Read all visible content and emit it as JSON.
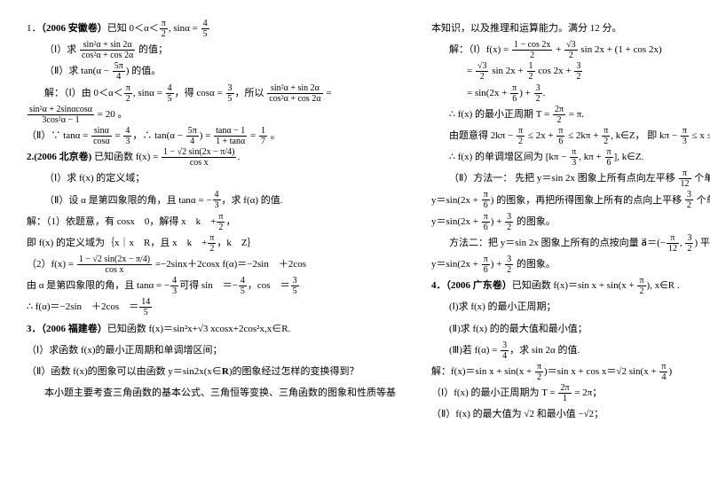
{
  "left": {
    "p1": {
      "title_prefix": "1．",
      "title_bold": "（2006 安徽卷）",
      "title_rest": "已知 0＜α＜",
      "frac1_num": "π",
      "frac1_den": "2",
      "rest2": ", sinα = ",
      "frac2_num": "4",
      "frac2_den": "5",
      "q1_a": "（Ⅰ）求 ",
      "q1_frac_num": "sin²α + sin 2α",
      "q1_frac_den": "cos²α + cos 2α",
      "q1_b": " 的值；",
      "q2_a": "（Ⅱ）求 tan(α − ",
      "q2_frac_num": "5π",
      "q2_frac_den": "4",
      "q2_b": ") 的值。",
      "sol_a": "解：（Ⅰ）由 0＜α＜",
      "sol_frac1_num": "π",
      "sol_frac1_den": "2",
      "sol_b": ", sinα = ",
      "sol_frac2_num": "4",
      "sol_frac2_den": "5",
      "sol_c": "，得 cosα = ",
      "sol_frac3_num": "3",
      "sol_frac3_den": "5",
      "sol_d": "，所以 ",
      "sol_frac4_num": "sin²α + sin 2α",
      "sol_frac4_den": "cos²α + cos 2α",
      "sol_e": " =",
      "sol2_frac_num": "sin²α + 2sinαcosα",
      "sol2_frac_den": "3cos²α − 1",
      "sol2_b": " = 20 。",
      "sol3_a": "（Ⅱ）∵ tanα = ",
      "sol3_f1_num": "sinα",
      "sol3_f1_den": "cosα",
      "sol3_b": " = ",
      "sol3_f2_num": "4",
      "sol3_f2_den": "3",
      "sol3_c": "，∴ tan(α − ",
      "sol3_f3_num": "5π",
      "sol3_f3_den": "4",
      "sol3_d": ") = ",
      "sol3_f4_num": "tanα − 1",
      "sol3_f4_den": "1 + tanα",
      "sol3_e": " = ",
      "sol3_f5_num": "1",
      "sol3_f5_den": "7",
      "sol3_f": " 。"
    },
    "p2": {
      "title_prefix": "2.",
      "title_bold": "(2006 北京卷)",
      "title_rest": " 已知函数 f(x) = ",
      "fnum": "1 − √2 sin(2x − π/4)",
      "fden": "cos x",
      "rest": ".",
      "q1": "（Ⅰ）求 f(x) 的定义域；",
      "q2_a": "（Ⅱ）设 α 是第四象限的角，且 tanα = −",
      "q2_f_num": "4",
      "q2_f_den": "3",
      "q2_b": "，求 f(α) 的值.",
      "s1_a": "解：（1）依题意，有 cosx　0，解得 x　k　+",
      "s1_f_num": "π",
      "s1_f_den": "2",
      "s1_b": "，",
      "s2_a": "即 f(x) 的定义域为｛x｜x　R，且 x　k　+",
      "s2_f_num": "π",
      "s2_f_den": "2",
      "s2_b": "，k　Z｝",
      "s3_a": "（2）f(x) = ",
      "s3_f_num": "1 − √2 sin(2x − π/4)",
      "s3_f_den": "cos x",
      "s3_b": " =−2sinx＋2cosx     f(α)＝−2sin　＋2cos",
      "s4_a": "由 α 是第四象限的角，且 tanα = −",
      "s4_f1_num": "4",
      "s4_f1_den": "3",
      "s4_b": "可得 sin　＝−",
      "s4_f2_num": "4",
      "s4_f2_den": "5",
      "s4_c": "，cos　＝",
      "s4_f3_num": "3",
      "s4_f3_den": "5",
      "s5_a": "∴ f(α)＝−2sin　＋2cos　＝",
      "s5_f_num": "14",
      "s5_f_den": "5"
    },
    "p3": {
      "title_prefix": "3．",
      "title_bold": "（2006 福建卷）",
      "title_rest": "已知函数 f(x)＝sin²x+√3 xcosx+2cos²x,x∈R.",
      "q1": "（Ⅰ）求函数 f(x)的最小正周期和单调增区间；",
      "q2_a": "（Ⅱ）函数 f(x)的图象可以由函数 y＝sin2x(x∈",
      "q2_bold": "R",
      "q2_b": ")的图象经过怎样的变换得到？",
      "note": "本小题主要考查三角函数的基本公式、三角恒等变换、三角函数的图象和性质等基"
    }
  },
  "right": {
    "head": "本知识，以及推理和运算能力。满分 12 分。",
    "s1_a": "解：（Ⅰ）f(x) = ",
    "s1_f1_num": "1 − cos 2x",
    "s1_f1_den": "2",
    "s1_b": " + ",
    "s1_f2_num": "√3",
    "s1_f2_den": "2",
    "s1_c": " sin 2x + (1 + cos 2x)",
    "s2_a": "= ",
    "s2_f1_num": "√3",
    "s2_f1_den": "2",
    "s2_b": " sin 2x + ",
    "s2_f2_num": "1",
    "s2_f2_den": "2",
    "s2_c": " cos 2x + ",
    "s2_f3_num": "3",
    "s2_f3_den": "2",
    "s3_a": "= sin(2x + ",
    "s3_f1_num": "π",
    "s3_f1_den": "6",
    "s3_b": ") + ",
    "s3_f2_num": "3",
    "s3_f2_den": "2",
    "s3_c": ".",
    "s4_a": "∴ f(x) 的最小正周期 T = ",
    "s4_f_num": "2π",
    "s4_f_den": "2",
    "s4_b": " = π.",
    "s5_a": "由题意得 2kπ − ",
    "s5_f1_num": "π",
    "s5_f1_den": "2",
    "s5_b": " ≤ 2x + ",
    "s5_f2_num": "π",
    "s5_f2_den": "6",
    "s5_c": " ≤ 2kπ + ",
    "s5_f3_num": "π",
    "s5_f3_den": "2",
    "s5_d": ", k∈Z，  即   kπ − ",
    "s5_f4_num": "π",
    "s5_f4_den": "3",
    "s5_e": " ≤ x ≤ kπ + ",
    "s5_f5_num": "π",
    "s5_f5_den": "6",
    "s5_f": ", k∈Z.",
    "s6_a": "∴ f(x) 的单调增区间为 ",
    "s6_br_l": "[",
    "s6_t1": "kπ − ",
    "s6_f1_num": "π",
    "s6_f1_den": "3",
    "s6_t2": ", kπ + ",
    "s6_f2_num": "π",
    "s6_f2_den": "6",
    "s6_br_r": "]",
    "s6_b": ", k∈Z.",
    "m1_a": "（Ⅱ）方法一：  先把 y＝sin 2x 图象上所有点向左平移 ",
    "m1_f_num": "π",
    "m1_f_den": "12",
    "m1_b": " 个单位长度，得到",
    "m2_a": "y＝sin(2x + ",
    "m2_f1_num": "π",
    "m2_f1_den": "6",
    "m2_b": ") 的图象，再把所得图象上所有的点向上平移 ",
    "m2_f2_num": "3",
    "m2_f2_den": "2",
    "m2_c": " 个单位长度，就得到",
    "m3_a": "y＝sin(2x + ",
    "m3_f1_num": "π",
    "m3_f1_den": "6",
    "m3_b": ") + ",
    "m3_f2_num": "3",
    "m3_f2_den": "2",
    "m3_c": " 的图象。",
    "m4_a": "方法二：把 y＝sin 2x 图象上所有的点按向量 a⃗＝(−",
    "m4_f1_num": "π",
    "m4_f1_den": "12",
    "m4_b": ", ",
    "m4_f2_num": "3",
    "m4_f2_den": "2",
    "m4_c": ") 平移，就得到",
    "m5_a": "y＝sin(2x + ",
    "m5_f1_num": "π",
    "m5_f1_den": "6",
    "m5_b": ") + ",
    "m5_f2_num": "3",
    "m5_f2_den": "2",
    "m5_c": " 的图象。",
    "p4_prefix": "4．",
    "p4_bold": "（2006 广东卷）",
    "p4_rest": "已知函数 f(x)＝sin x + sin(x + ",
    "p4_f_num": "π",
    "p4_f_den": "2",
    "p4_rest2": "), x∈R .",
    "p4_q1": "(Ⅰ)求 f(x) 的最小正周期；",
    "p4_q2": "(Ⅱ)求 f(x) 的的最大值和最小值；",
    "p4_q3_a": "(Ⅲ)若 f(α) = ",
    "p4_q3_f_num": "3",
    "p4_q3_f_den": "4",
    "p4_q3_b": "，求 sin 2α 的值.",
    "p4_s1_a": "解：f(x)＝sin x + sin(x + ",
    "p4_s1_f1_num": "π",
    "p4_s1_f1_den": "2",
    "p4_s1_b": ")＝sin x + cos x＝√2 sin(x + ",
    "p4_s1_f2_num": "π",
    "p4_s1_f2_den": "4",
    "p4_s1_c": ")",
    "p4_s2_a": "（Ⅰ）f(x) 的最小正周期为 T = ",
    "p4_s2_f_num": "2π",
    "p4_s2_f_den": "1",
    "p4_s2_b": " = 2π；",
    "p4_s3": "（Ⅱ）f(x) 的最大值为 √2 和最小值 −√2；"
  }
}
